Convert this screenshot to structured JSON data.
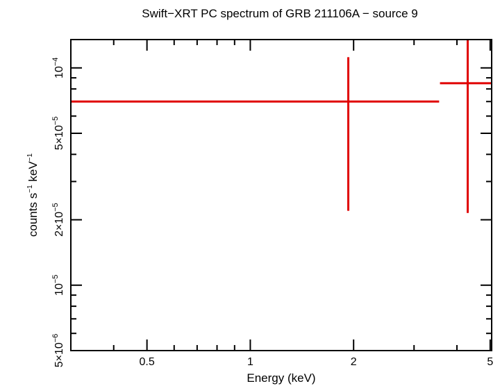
{
  "chart_data": {
    "type": "scatter",
    "title": "Swift−XRT PC spectrum of GRB 211106A − source 9",
    "xlabel": "Energy (keV)",
    "ylabel_main": "counts s",
    "ylabel_exp1": "−1",
    "ylabel_mid": " keV",
    "ylabel_exp2": "−1",
    "x_scale": "log",
    "y_scale": "log",
    "xlim": [
      0.3,
      5.05
    ],
    "ylim": [
      5e-06,
      0.000135
    ],
    "x_ticks": [
      {
        "value": 0.5,
        "label": "0.5"
      },
      {
        "value": 1,
        "label": "1"
      },
      {
        "value": 2,
        "label": "2"
      },
      {
        "value": 5,
        "label": "5"
      }
    ],
    "y_ticks": [
      {
        "value": 5e-06,
        "mant": "5×10",
        "exp": "−6"
      },
      {
        "value": 1e-05,
        "mant": "10",
        "exp": "−5"
      },
      {
        "value": 2e-05,
        "mant": "2×10",
        "exp": "−5"
      },
      {
        "value": 5e-05,
        "mant": "5×10",
        "exp": "−5"
      },
      {
        "value": 0.0001,
        "mant": "10",
        "exp": "−4"
      }
    ],
    "grid": false,
    "series": [
      {
        "color": "#e00000",
        "points": [
          {
            "x": 1.93,
            "x_lo": 0.3,
            "x_hi": 3.55,
            "y": 7e-05,
            "y_lo": 2.2e-05,
            "y_hi": 0.000112
          },
          {
            "x": 4.3,
            "x_lo": 3.57,
            "x_hi": 5.05,
            "y": 8.5e-05,
            "y_lo": 2.15e-05,
            "y_hi": 0.000135
          }
        ]
      }
    ]
  }
}
